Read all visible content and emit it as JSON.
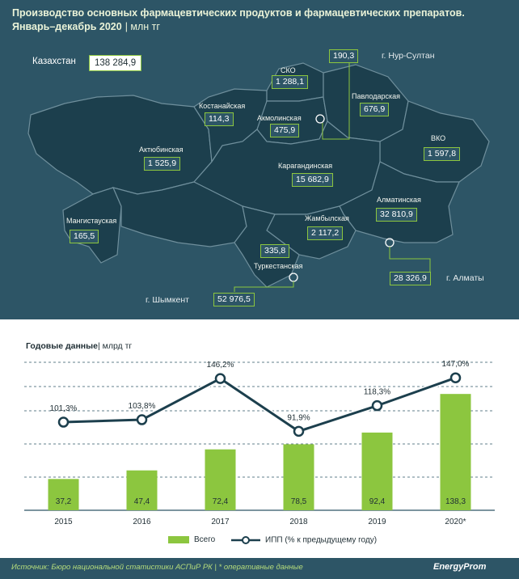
{
  "title": {
    "line1": "Производство основных фармацевтических продуктов и фармацевтических препаратов.",
    "line2": "Январь–декабрь 2020",
    "unit": "| млн тг"
  },
  "map": {
    "kazakhstan": {
      "label": "Казахстан",
      "value": "138 284,9"
    },
    "regions": [
      {
        "id": "sko",
        "name": "СКО",
        "value": "1 288,1"
      },
      {
        "id": "kostanay",
        "name": "Костанайская",
        "value": "114,3"
      },
      {
        "id": "akmola",
        "name": "Акмолинская",
        "value": "475,9"
      },
      {
        "id": "pavlodar",
        "name": "Павлодарская",
        "value": "676,9"
      },
      {
        "id": "aktobe",
        "name": "Актюбинская",
        "value": "1 525,9"
      },
      {
        "id": "karaganda",
        "name": "Карагандинская",
        "value": "15 682,9"
      },
      {
        "id": "vko",
        "name": "ВКО",
        "value": "1 597,8"
      },
      {
        "id": "almaty_reg",
        "name": "Алматинская",
        "value": "32 810,9"
      },
      {
        "id": "mangistau",
        "name": "Мангистауская",
        "value": "165,5"
      },
      {
        "id": "zhambyl",
        "name": "Жамбылская",
        "value": "2 117,2"
      },
      {
        "id": "turkestan",
        "name": "Туркестанская",
        "value": "335,8"
      }
    ],
    "cities": [
      {
        "id": "nursultan",
        "name": "г. Нур-Султан",
        "value": "190,3"
      },
      {
        "id": "almaty",
        "name": "г. Алматы",
        "value": "28 326,9"
      },
      {
        "id": "shymkent",
        "name": "г. Шымкент",
        "value": "52 976,5"
      }
    ]
  },
  "chart_title": {
    "bold": "Годовые данные",
    "unit": "| млрд тг"
  },
  "chart_data": {
    "type": "bar",
    "categories": [
      "2015",
      "2016",
      "2017",
      "2018",
      "2019",
      "2020*"
    ],
    "series": [
      {
        "name": "Всего",
        "type": "bar",
        "values": [
          37.2,
          47.4,
          72.4,
          78.5,
          92.4,
          138.3
        ],
        "labels": [
          "37,2",
          "47,4",
          "72,4",
          "78,5",
          "92,4",
          "138,3"
        ],
        "color": "#8cc63f"
      },
      {
        "name": "ИПП (% к предыдущему году)",
        "type": "line",
        "values": [
          101.3,
          103.8,
          146.2,
          91.9,
          118.3,
          147.0
        ],
        "labels": [
          "101,3%",
          "103,8%",
          "146,2%",
          "91,9%",
          "118,3%",
          "147,0%"
        ],
        "color": "#2d5566"
      }
    ],
    "grid": true,
    "legend": "bottom"
  },
  "footer": {
    "source": "Источник: Бюро национальной статистики АСПиР РК | * оперативные данные",
    "brand": "EnergyProm"
  },
  "colors": {
    "dark": "#2d5566",
    "accent": "#8cc63f",
    "region": "#1c3f4d",
    "border": "#6f8f9c"
  }
}
